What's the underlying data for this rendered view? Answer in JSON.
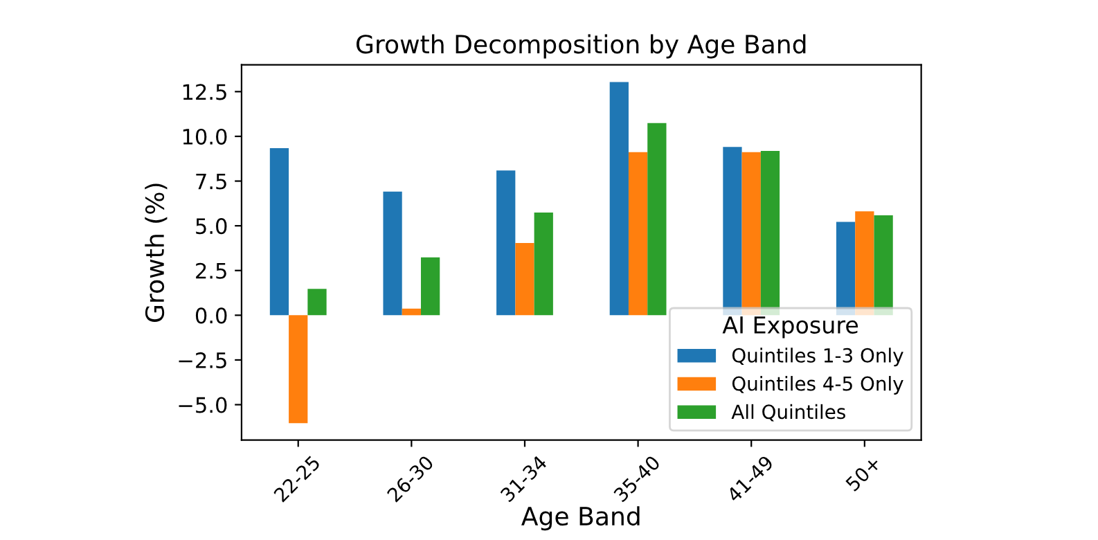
{
  "chart_data": {
    "type": "bar",
    "title": "Growth Decomposition by Age Band",
    "xlabel": "Age Band",
    "ylabel": "Growth (%)",
    "legend_title": "AI Exposure",
    "categories": [
      "22-25",
      "26-30",
      "31-34",
      "35-40",
      "41-49",
      "50+"
    ],
    "series": [
      {
        "name": "Quintiles 1-3 Only",
        "color": "#1f77b4",
        "values": [
          9.34,
          6.91,
          8.09,
          13.04,
          9.41,
          5.22
        ]
      },
      {
        "name": "Quintiles 4-5 Only",
        "color": "#ff7f0e",
        "values": [
          -6.03,
          0.37,
          4.04,
          9.12,
          9.12,
          5.81
        ]
      },
      {
        "name": "All Quintiles",
        "color": "#2ca02c",
        "values": [
          1.47,
          3.24,
          5.74,
          10.74,
          9.19,
          5.59
        ]
      }
    ],
    "ylim": [
      -6.98,
      14.0
    ],
    "yticks": [
      {
        "value": -5,
        "label": "−5.0"
      },
      {
        "value": -2.5,
        "label": "−2.5"
      },
      {
        "value": 0,
        "label": "0.0"
      },
      {
        "value": 2.5,
        "label": "2.5"
      },
      {
        "value": 5,
        "label": "5.0"
      },
      {
        "value": 7.5,
        "label": "7.5"
      },
      {
        "value": 10,
        "label": "10.0"
      },
      {
        "value": 12.5,
        "label": "12.5"
      }
    ],
    "legend": "bottom right",
    "grid": false
  }
}
